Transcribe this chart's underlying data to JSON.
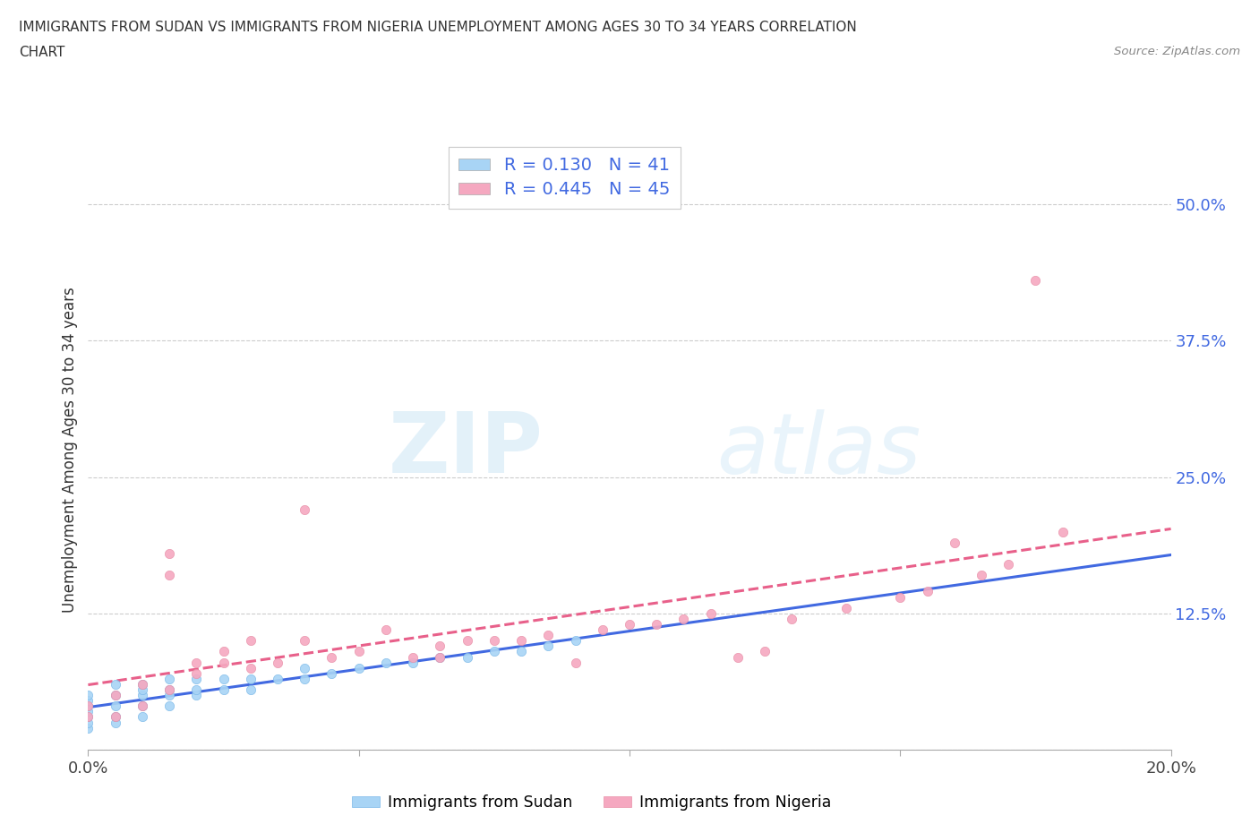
{
  "title_line1": "IMMIGRANTS FROM SUDAN VS IMMIGRANTS FROM NIGERIA UNEMPLOYMENT AMONG AGES 30 TO 34 YEARS CORRELATION",
  "title_line2": "CHART",
  "source": "Source: ZipAtlas.com",
  "ylabel": "Unemployment Among Ages 30 to 34 years",
  "xlim": [
    0.0,
    0.2
  ],
  "ylim": [
    0.0,
    0.55
  ],
  "yticks": [
    0.0,
    0.125,
    0.25,
    0.375,
    0.5
  ],
  "ytick_labels": [
    "",
    "12.5%",
    "25.0%",
    "37.5%",
    "50.0%"
  ],
  "xticks": [
    0.0,
    0.05,
    0.1,
    0.15,
    0.2
  ],
  "xtick_labels": [
    "0.0%",
    "",
    "",
    "",
    "20.0%"
  ],
  "sudan_color": "#A8D4F5",
  "nigeria_color": "#F5A8C0",
  "sudan_line_color": "#4169E1",
  "nigeria_line_color": "#E8608A",
  "R_sudan": 0.13,
  "N_sudan": 41,
  "R_nigeria": 0.445,
  "N_nigeria": 45,
  "watermark_zip": "ZIP",
  "watermark_atlas": "atlas",
  "legend_label_sudan": "Immigrants from Sudan",
  "legend_label_nigeria": "Immigrants from Nigeria",
  "sudan_x": [
    0.0,
    0.0,
    0.0,
    0.0,
    0.0,
    0.0,
    0.0,
    0.005,
    0.005,
    0.005,
    0.005,
    0.005,
    0.01,
    0.01,
    0.01,
    0.01,
    0.01,
    0.015,
    0.015,
    0.015,
    0.015,
    0.02,
    0.02,
    0.02,
    0.025,
    0.025,
    0.03,
    0.03,
    0.035,
    0.04,
    0.04,
    0.045,
    0.05,
    0.055,
    0.06,
    0.065,
    0.07,
    0.075,
    0.08,
    0.085,
    0.09
  ],
  "sudan_y": [
    0.02,
    0.025,
    0.03,
    0.035,
    0.04,
    0.045,
    0.05,
    0.025,
    0.03,
    0.04,
    0.05,
    0.06,
    0.03,
    0.04,
    0.05,
    0.055,
    0.06,
    0.04,
    0.05,
    0.055,
    0.065,
    0.05,
    0.055,
    0.065,
    0.055,
    0.065,
    0.055,
    0.065,
    0.065,
    0.065,
    0.075,
    0.07,
    0.075,
    0.08,
    0.08,
    0.085,
    0.085,
    0.09,
    0.09,
    0.095,
    0.1
  ],
  "nigeria_x": [
    0.0,
    0.0,
    0.005,
    0.005,
    0.01,
    0.01,
    0.015,
    0.015,
    0.015,
    0.02,
    0.02,
    0.025,
    0.025,
    0.03,
    0.03,
    0.035,
    0.04,
    0.04,
    0.045,
    0.05,
    0.055,
    0.06,
    0.065,
    0.065,
    0.07,
    0.075,
    0.08,
    0.085,
    0.09,
    0.095,
    0.1,
    0.105,
    0.11,
    0.115,
    0.12,
    0.125,
    0.13,
    0.14,
    0.15,
    0.155,
    0.16,
    0.165,
    0.17,
    0.175,
    0.18
  ],
  "nigeria_y": [
    0.03,
    0.04,
    0.03,
    0.05,
    0.04,
    0.06,
    0.18,
    0.16,
    0.055,
    0.07,
    0.08,
    0.08,
    0.09,
    0.1,
    0.075,
    0.08,
    0.22,
    0.1,
    0.085,
    0.09,
    0.11,
    0.085,
    0.085,
    0.095,
    0.1,
    0.1,
    0.1,
    0.105,
    0.08,
    0.11,
    0.115,
    0.115,
    0.12,
    0.125,
    0.085,
    0.09,
    0.12,
    0.13,
    0.14,
    0.145,
    0.19,
    0.16,
    0.17,
    0.43,
    0.2
  ]
}
